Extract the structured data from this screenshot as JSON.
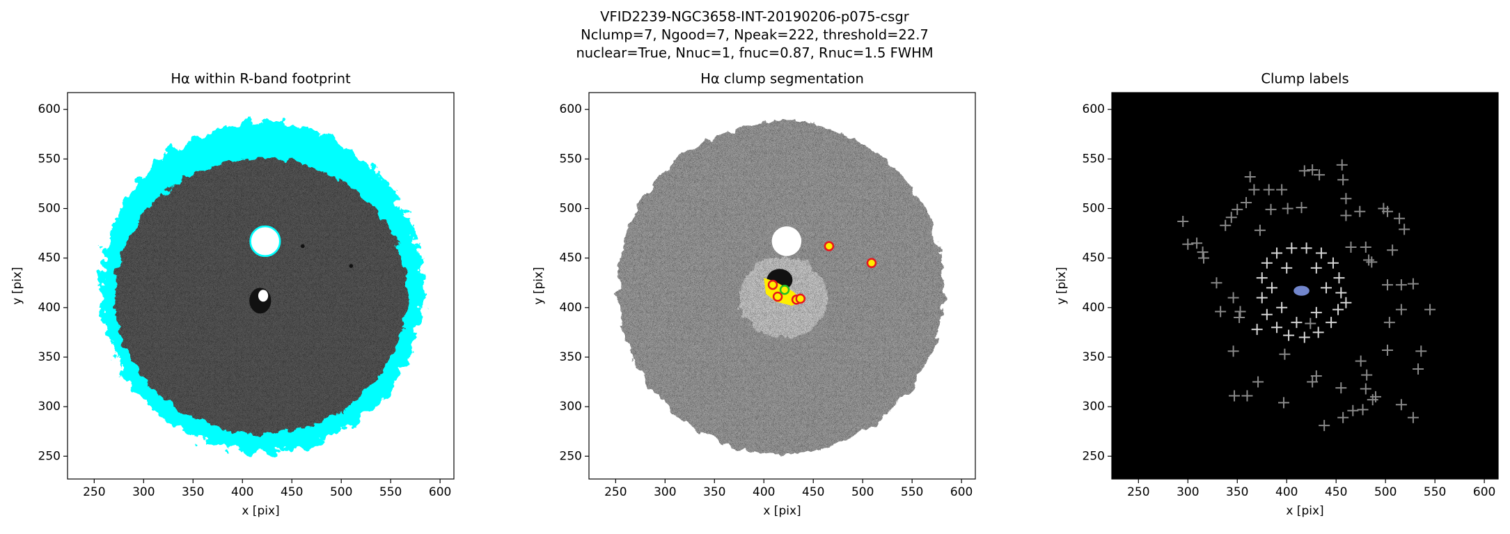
{
  "suptitle": [
    "VFID2239-NGC3658-INT-20190206-p075-csgr",
    "Nclump=7, Ngood=7, Npeak=222, threshold=22.7",
    "nuclear=True, Nnuc=1, fnuc=0.87, Rnuc=1.5 FWHM"
  ],
  "chart_data": [
    {
      "type": "image",
      "title": "Hα within R-band footprint",
      "xlabel": "x [pix]",
      "ylabel": "y [pix]",
      "xlim": [
        223,
        614
      ],
      "ylim": [
        227,
        617
      ],
      "xticks": [
        250,
        300,
        350,
        400,
        450,
        500,
        550,
        600
      ],
      "yticks": [
        250,
        300,
        350,
        400,
        450,
        500,
        550,
        600
      ],
      "background": "#ffffff",
      "series": []
    },
    {
      "type": "image",
      "title": "Hα clump segmentation",
      "xlabel": "x [pix]",
      "ylabel": "y [pix]",
      "xlim": [
        223,
        614
      ],
      "ylim": [
        227,
        617
      ],
      "xticks": [
        250,
        300,
        350,
        400,
        450,
        500,
        550,
        600
      ],
      "yticks": [
        250,
        300,
        350,
        400,
        450,
        500,
        550,
        600
      ],
      "background": "#ffffff",
      "series": [
        {
          "marker": "circle",
          "color": "#e8141c",
          "facecolor": "#ffee00",
          "x": [
            409,
            414,
            433,
            437,
            466,
            509
          ],
          "y": [
            423,
            411,
            408,
            409,
            462,
            445
          ]
        },
        {
          "marker": "circle",
          "color": "#22c022",
          "facecolor": "#ffee00",
          "x": [
            421
          ],
          "y": [
            418
          ]
        }
      ]
    },
    {
      "type": "image",
      "title": "Clump labels",
      "xlabel": "x [pix]",
      "ylabel": "y [pix]",
      "xlim": [
        223,
        614
      ],
      "ylim": [
        227,
        617
      ],
      "xticks": [
        250,
        300,
        350,
        400,
        450,
        500,
        550,
        600
      ],
      "yticks": [
        250,
        300,
        350,
        400,
        450,
        500,
        550,
        600
      ],
      "background": "#000000",
      "series": [
        {
          "marker": "plus",
          "color": "#8a8a8a",
          "x": [
            295,
            300,
            309,
            315,
            316,
            329,
            333,
            346,
            346,
            347,
            352,
            338,
            344,
            350,
            363,
            359,
            367,
            373,
            382,
            384,
            395,
            401,
            415,
            418,
            426,
            433,
            456,
            457,
            460,
            460,
            474,
            498,
            502,
            514,
            519,
            507,
            480,
            483,
            486,
            465,
            502,
            516,
            528,
            516,
            504,
            545,
            502,
            536,
            533,
            516,
            528,
            490,
            480,
            475,
            481,
            487,
            477,
            467,
            457,
            455,
            438,
            430,
            426,
            424,
            398,
            397,
            371,
            360,
            353
          ],
          "y": [
            487,
            464,
            465,
            456,
            450,
            425,
            396,
            410,
            356,
            311,
            390,
            483,
            491,
            499,
            532,
            506,
            519,
            478,
            519,
            499,
            519,
            500,
            501,
            538,
            539,
            534,
            544,
            529,
            510,
            493,
            497,
            500,
            497,
            490,
            479,
            458,
            461,
            448,
            446,
            461,
            423,
            423,
            424,
            398,
            385,
            398,
            357,
            356,
            338,
            302,
            289,
            310,
            318,
            346,
            332,
            307,
            297,
            296,
            289,
            319,
            281,
            331,
            325,
            384,
            353,
            304,
            325,
            311,
            396
          ]
        },
        {
          "marker": "plus",
          "color": "#d8d8d8",
          "x": [
            375,
            380,
            390,
            405,
            420,
            435,
            447,
            453,
            455,
            452,
            445,
            432,
            418,
            402,
            390,
            380,
            375,
            385,
            400,
            430,
            440,
            395,
            430,
            410,
            370,
            460
          ],
          "y": [
            430,
            445,
            455,
            460,
            460,
            455,
            445,
            430,
            415,
            398,
            385,
            375,
            370,
            372,
            380,
            393,
            410,
            420,
            440,
            440,
            420,
            400,
            395,
            385,
            378,
            405
          ]
        }
      ]
    }
  ]
}
